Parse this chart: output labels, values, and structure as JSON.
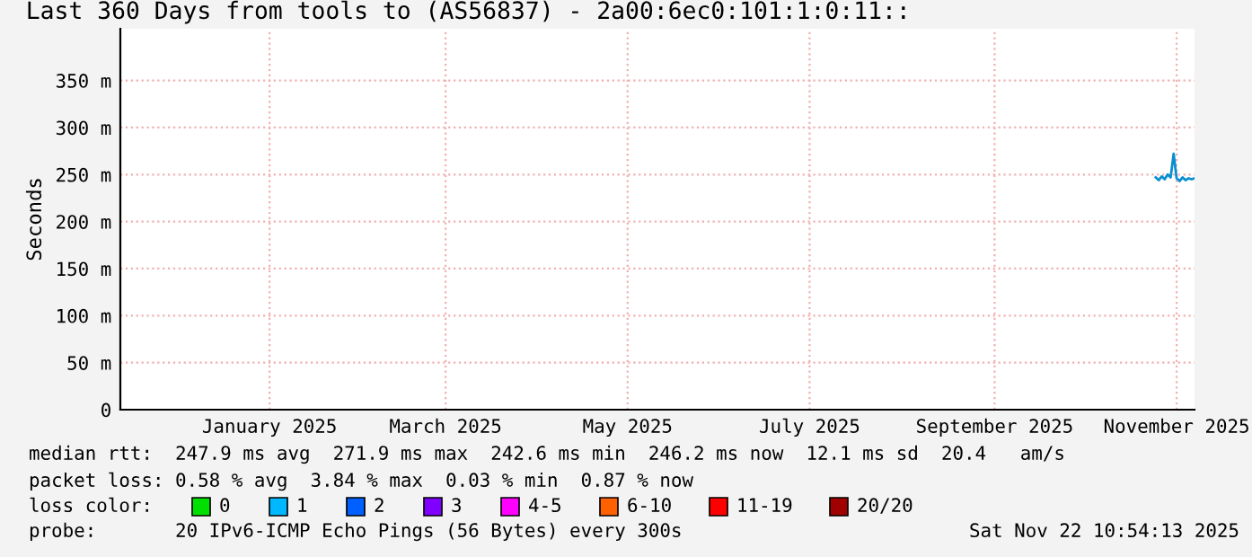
{
  "chart_data": {
    "type": "line",
    "title": "Last 360 Days from tools to (AS56837) - 2a00:6ec0:101:1:0:11::",
    "ylabel": "Seconds",
    "x": [
      "2025-11-09",
      "2025-11-10",
      "2025-11-11",
      "2025-11-12",
      "2025-11-13",
      "2025-11-14",
      "2025-11-15",
      "2025-11-16",
      "2025-11-17",
      "2025-11-18",
      "2025-11-19",
      "2025-11-20",
      "2025-11-21",
      "2025-11-22"
    ],
    "series": [
      {
        "color": "#0a8fd0",
        "values": [
          247,
          244,
          248,
          245,
          250,
          247,
          272,
          246,
          243,
          247,
          244,
          246,
          245,
          246
        ]
      }
    ],
    "xlim": [
      "2024-11-27",
      "2025-11-22"
    ],
    "xticks": [
      {
        "value": "2025-01-16",
        "label": "January 2025"
      },
      {
        "value": "2025-03-16",
        "label": "March 2025"
      },
      {
        "value": "2025-05-16",
        "label": "May 2025"
      },
      {
        "value": "2025-07-16",
        "label": "July 2025"
      },
      {
        "value": "2025-09-16",
        "label": "September 2025"
      },
      {
        "value": "2025-11-16",
        "label": "November 2025"
      }
    ],
    "ylim": [
      0,
      405
    ],
    "yticks": [
      0,
      {
        "value": 50,
        "label": "50 m"
      },
      {
        "value": 100,
        "label": "100 m"
      },
      {
        "value": 150,
        "label": "150 m"
      },
      {
        "value": 200,
        "label": "200 m"
      },
      {
        "value": 250,
        "label": "250 m"
      },
      {
        "value": 300,
        "label": "300 m"
      },
      {
        "value": 350,
        "label": "350 m"
      }
    ],
    "grid": true,
    "marker": "none",
    "line_style": "solid",
    "annotations": [
      "median rtt:  247.9 ms avg  271.9 ms max  242.6 ms min  246.2 ms now  12.1 ms sd  20.4   am/s",
      "packet loss: 0.58 % avg  3.84 % max  0.03 % min  0.87 % now",
      "loss color:",
      "0",
      "1",
      "2",
      "3",
      "4-5",
      "6-10",
      "11-19",
      "20/20",
      "probe:       20 IPv6-ICMP Echo Pings (56 Bytes) every 300s",
      "Sat Nov 22 10:54:13 2025"
    ]
  }
}
